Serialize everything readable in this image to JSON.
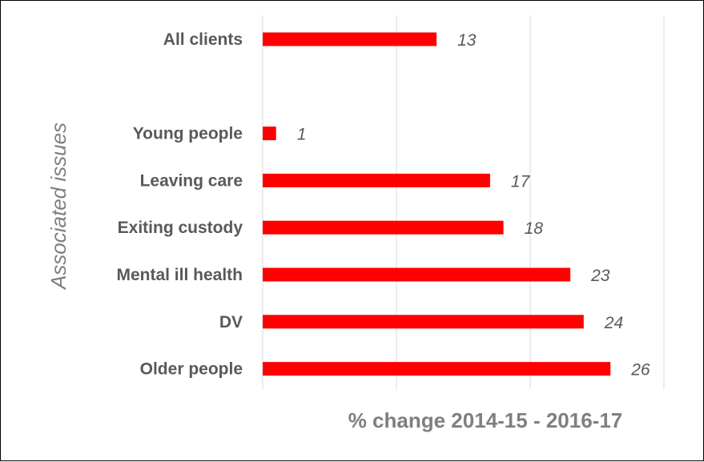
{
  "chart_data": {
    "type": "bar",
    "orientation": "horizontal",
    "categories": [
      "All clients",
      "",
      "Young people",
      "Leaving care",
      "Exiting custody",
      "Mental ill health",
      "DV",
      "Older people"
    ],
    "values": [
      13,
      null,
      1,
      17,
      18,
      23,
      24,
      26
    ],
    "data_labels": [
      "13",
      "",
      "1",
      "17",
      "18",
      "23",
      "24",
      "26"
    ],
    "xlabel": "% change 2014-15 - 2016-17",
    "ylabel": "Associated issues",
    "xlim": [
      0,
      30
    ],
    "x_gridlines": [
      0,
      10,
      20,
      30
    ],
    "grid": true,
    "legend": "none",
    "colors": {
      "bar": "#ff0000",
      "grid": "#d9d9d9",
      "label": "#595959",
      "axis_title": "#7f7f7f"
    }
  }
}
